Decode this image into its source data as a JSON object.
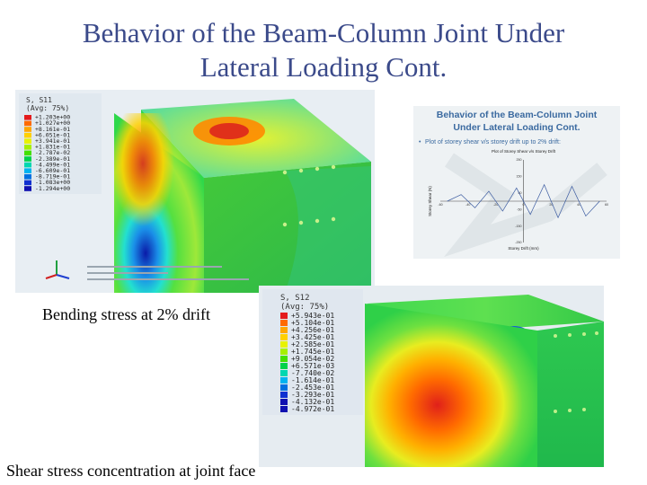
{
  "slide": {
    "title_line1": "Behavior of the Beam-Column Joint Under",
    "title_line2": "Lateral Loading Cont."
  },
  "captions": {
    "bending": "Bending stress at 2% drift",
    "shear": "Shear stress concentration at joint face"
  },
  "bending_legend": {
    "header": [
      "S, S11",
      "(Avg: 75%)"
    ],
    "values": [
      "+1.203e+00",
      "+1.027e+00",
      "+8.161e-01",
      "+6.051e-01",
      "+3.941e-01",
      "+1.831e-01",
      "-2.787e-02",
      "-2.389e-01",
      "-4.499e-01",
      "-6.609e-01",
      "-8.719e-01",
      "-1.083e+00",
      "-1.294e+00"
    ]
  },
  "shear_legend": {
    "header": [
      "S, S12",
      "(Avg: 75%)"
    ],
    "values": [
      "+5.943e-01",
      "+5.104e-01",
      "+4.256e-01",
      "+3.425e-01",
      "+2.585e-01",
      "+1.745e-01",
      "+9.054e-02",
      "+6.571e-03",
      "-7.740e-02",
      "-1.614e-01",
      "-2.453e-01",
      "-3.293e-01",
      "-4.132e-01",
      "-4.972e-01"
    ]
  },
  "inset_slide": {
    "title_line1": "Behavior of the Beam-Column Joint",
    "title_line2": "Under Lateral Loading Cont.",
    "bullet": "Plot of storey shear v/s storey drift up to 2% drift:"
  },
  "chart_data": {
    "type": "line",
    "title": "Plot of Storey Shear v/s Storey Drift",
    "xlabel": "Storey Drift (mm)",
    "ylabel": "Storey Shear (N)",
    "xlim": [
      -60,
      60
    ],
    "ylim": [
      -250,
      250
    ],
    "x_ticks": [
      -60,
      -40,
      -20,
      0,
      20,
      40,
      60
    ],
    "y_ticks": [
      250,
      150,
      50,
      -50,
      -150,
      -250
    ],
    "series": [
      {
        "x": [
          -55,
          -45,
          -35,
          -25,
          -15,
          -5,
          5,
          15,
          25,
          35,
          45,
          55
        ],
        "y": [
          0,
          40,
          -40,
          60,
          -60,
          80,
          -80,
          100,
          -100,
          90,
          -90,
          0
        ]
      }
    ]
  },
  "colors": {
    "title": "#3b4a8a",
    "legend_scale": [
      "#e41a1c",
      "#ff6a00",
      "#ffa600",
      "#ffd000",
      "#e8f200",
      "#a6f000",
      "#44e000",
      "#00d24a",
      "#00d7b0",
      "#00b3f0",
      "#0070e0",
      "#1030d0",
      "#1010b0"
    ]
  }
}
